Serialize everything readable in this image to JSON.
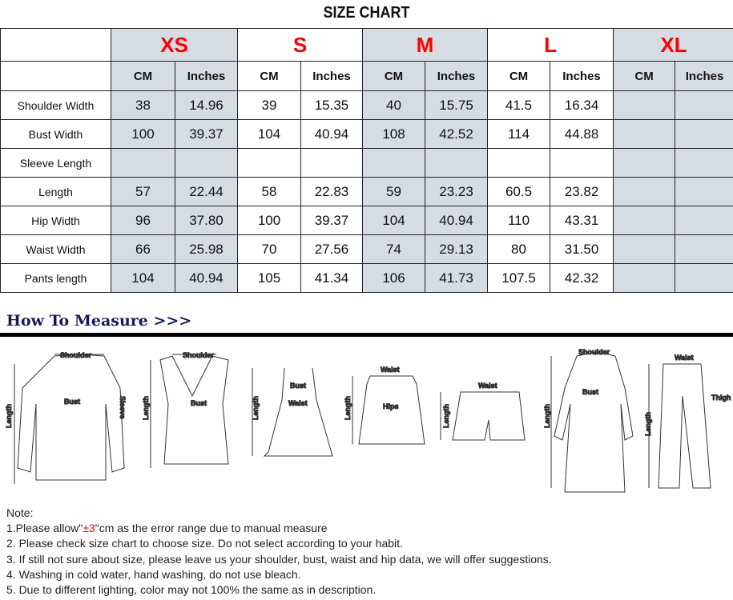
{
  "title": "SIZE CHART",
  "sizes": [
    "XS",
    "S",
    "M",
    "L",
    "XL"
  ],
  "units": {
    "cm": "CM",
    "in": "Inches"
  },
  "rows": [
    {
      "label": "Shoulder Width",
      "v": [
        "38",
        "14.96",
        "39",
        "15.35",
        "40",
        "15.75",
        "41.5",
        "16.34",
        "",
        ""
      ]
    },
    {
      "label": "Bust Width",
      "v": [
        "100",
        "39.37",
        "104",
        "40.94",
        "108",
        "42.52",
        "114",
        "44.88",
        "",
        ""
      ]
    },
    {
      "label": "Sleeve Length",
      "v": [
        "",
        "",
        "",
        "",
        "",
        "",
        "",
        "",
        "",
        ""
      ]
    },
    {
      "label": "Length",
      "v": [
        "57",
        "22.44",
        "58",
        "22.83",
        "59",
        "23.23",
        "60.5",
        "23.82",
        "",
        ""
      ]
    },
    {
      "label": "Hip Width",
      "v": [
        "96",
        "37.80",
        "100",
        "39.37",
        "104",
        "40.94",
        "110",
        "43.31",
        "",
        ""
      ]
    },
    {
      "label": "Waist Width",
      "v": [
        "66",
        "25.98",
        "70",
        "27.56",
        "74",
        "29.13",
        "80",
        "31.50",
        "",
        ""
      ]
    },
    {
      "label": "Pants length",
      "v": [
        "104",
        "40.94",
        "105",
        "41.34",
        "106",
        "41.73",
        "107.5",
        "42.32",
        "",
        ""
      ]
    }
  ],
  "how_to_measure": "How To Measure >>>",
  "illus_labels": {
    "shoulder": "Shoulder",
    "bust": "Bust",
    "sleeve": "Sleeve",
    "length": "Length",
    "waist": "Waist",
    "hips": "Hips",
    "thigh": "Thigh"
  },
  "notes": {
    "heading": "Note:",
    "line1_pre": "1.Please allow\"",
    "line1_red": "±3",
    "line1_post": "\"cm as the error range due to manual measure",
    "line2": "2. Please check size chart to choose size. Do not select according to your habit.",
    "line3": "3. If still not sure about size, please leave us your shoulder, bust, waist and hip data, we will offer suggestions.",
    "line4": "4. Washing in cold water, hand washing, do not use bleach.",
    "line5": "5. Due to different lighting, color may not 100% the same as in description."
  },
  "colors": {
    "size_label": "#ff0000",
    "shade": "#d6dce4",
    "heading": "#141a5e"
  }
}
